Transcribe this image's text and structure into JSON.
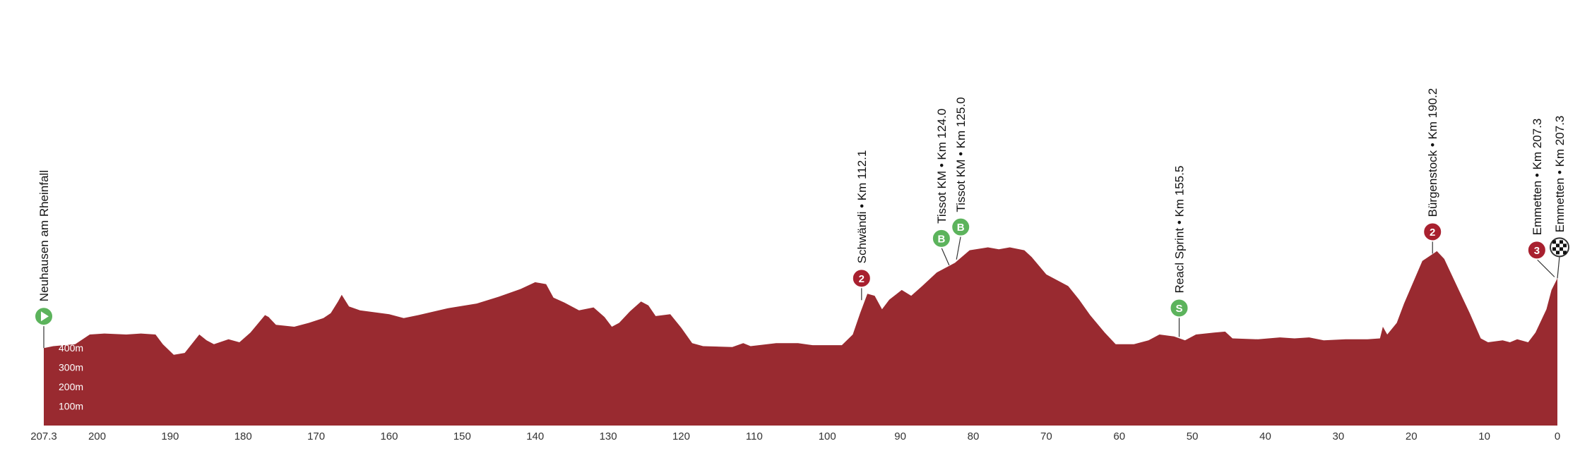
{
  "chart_data": {
    "type": "area",
    "xlabel": "",
    "ylabel": "",
    "x_direction": "reversed",
    "xlim": [
      207.3,
      0
    ],
    "ylim": [
      0,
      1500
    ],
    "x_ticks": [
      "207.3",
      "200",
      "190",
      "180",
      "170",
      "160",
      "150",
      "140",
      "130",
      "120",
      "110",
      "100",
      "90",
      "80",
      "70",
      "60",
      "50",
      "40",
      "30",
      "20",
      "10",
      "0"
    ],
    "y_ticks": [
      "100m",
      "200m",
      "300m",
      "400m",
      "500m",
      "600m",
      "700m",
      "800m",
      "900m",
      "1000m",
      "1100m",
      "1200m",
      "1300m",
      "1400m",
      "1500m"
    ],
    "colors": {
      "profile": "#992a30",
      "climb_badge": "#a8202f",
      "sprint_badge": "#5cb35c",
      "start_badge": "#5cb35c"
    },
    "series": [
      {
        "points": [
          [
            207.3,
            400
          ],
          [
            206,
            410
          ],
          [
            203,
            420
          ],
          [
            201,
            470
          ],
          [
            199,
            475
          ],
          [
            196,
            470
          ],
          [
            194,
            475
          ],
          [
            192,
            470
          ],
          [
            191,
            420
          ],
          [
            189.5,
            365
          ],
          [
            188,
            375
          ],
          [
            186,
            470
          ],
          [
            185,
            440
          ],
          [
            184,
            420
          ],
          [
            182,
            445
          ],
          [
            180.5,
            430
          ],
          [
            179,
            480
          ],
          [
            177,
            570
          ],
          [
            176.5,
            560
          ],
          [
            175.5,
            520
          ],
          [
            173,
            510
          ],
          [
            171,
            530
          ],
          [
            169,
            555
          ],
          [
            168,
            580
          ],
          [
            167,
            640
          ],
          [
            166.5,
            675
          ],
          [
            165.5,
            615
          ],
          [
            164,
            595
          ],
          [
            160,
            575
          ],
          [
            158,
            555
          ],
          [
            156,
            570
          ],
          [
            152,
            605
          ],
          [
            148,
            630
          ],
          [
            145,
            665
          ],
          [
            142,
            705
          ],
          [
            140,
            740
          ],
          [
            138.5,
            730
          ],
          [
            137.5,
            660
          ],
          [
            136,
            635
          ],
          [
            134,
            595
          ],
          [
            132,
            610
          ],
          [
            130.5,
            560
          ],
          [
            129.5,
            510
          ],
          [
            128.5,
            530
          ],
          [
            127,
            590
          ],
          [
            125.5,
            640
          ],
          [
            124.5,
            620
          ],
          [
            123.5,
            565
          ],
          [
            121.5,
            575
          ],
          [
            120,
            505
          ],
          [
            118.5,
            425
          ],
          [
            117,
            410
          ],
          [
            113,
            405
          ],
          [
            111.5,
            425
          ],
          [
            110.5,
            410
          ],
          [
            107,
            425
          ],
          [
            104,
            425
          ],
          [
            102,
            415
          ],
          [
            98,
            415
          ],
          [
            96.5,
            470
          ],
          [
            95.5,
            580
          ],
          [
            94.5,
            680
          ],
          [
            93.5,
            670
          ],
          [
            92.5,
            600
          ],
          [
            91.5,
            650
          ],
          [
            89.8,
            700
          ],
          [
            88.5,
            670
          ],
          [
            87,
            720
          ],
          [
            85,
            790
          ],
          [
            82.5,
            840
          ],
          [
            80.5,
            905
          ],
          [
            78,
            920
          ],
          [
            76.5,
            910
          ],
          [
            75,
            920
          ],
          [
            73,
            905
          ],
          [
            72,
            870
          ],
          [
            70,
            780
          ],
          [
            67,
            720
          ],
          [
            65.5,
            650
          ],
          [
            64,
            570
          ],
          [
            62,
            480
          ],
          [
            60.5,
            420
          ],
          [
            58,
            420
          ],
          [
            56,
            440
          ],
          [
            54.5,
            470
          ],
          [
            52.5,
            460
          ],
          [
            51,
            440
          ],
          [
            49.5,
            470
          ],
          [
            47,
            480
          ],
          [
            45.5,
            485
          ],
          [
            44.5,
            450
          ],
          [
            41,
            445
          ],
          [
            38,
            455
          ],
          [
            36,
            450
          ],
          [
            34,
            455
          ],
          [
            32,
            440
          ],
          [
            29,
            445
          ],
          [
            26,
            445
          ],
          [
            24.3,
            450
          ],
          [
            23.9,
            510
          ],
          [
            23.3,
            470
          ],
          [
            22,
            530
          ],
          [
            21,
            630
          ],
          [
            18.5,
            850
          ],
          [
            16.5,
            900
          ],
          [
            15.5,
            860
          ],
          [
            13.5,
            700
          ],
          [
            12,
            580
          ],
          [
            10.5,
            450
          ],
          [
            9.5,
            430
          ],
          [
            7.5,
            440
          ],
          [
            6.5,
            430
          ],
          [
            5.5,
            445
          ],
          [
            4,
            430
          ],
          [
            3,
            480
          ],
          [
            1.5,
            600
          ],
          [
            0.8,
            700
          ],
          [
            0,
            760
          ]
        ]
      }
    ],
    "markers": [
      {
        "km": 207.3,
        "elev": 400,
        "kind": "start",
        "symbol": "",
        "label": "Neuhausen am Rheinfall"
      },
      {
        "km": 95.3,
        "elev": 640,
        "kind": "climb",
        "symbol": "2",
        "label": "Schwändi • Km 112.1"
      },
      {
        "km": 83.3,
        "elev": 820,
        "kind": "sprint",
        "symbol": "B",
        "label": "Tissot KM • Km 124.0"
      },
      {
        "km": 82.3,
        "elev": 850,
        "kind": "sprint",
        "symbol": "B",
        "label": "Tissot KM • Km 125.0"
      },
      {
        "km": 51.8,
        "elev": 450,
        "kind": "sprint",
        "symbol": "S",
        "label": "Reacl Sprint • Km 155.5"
      },
      {
        "km": 17.1,
        "elev": 880,
        "kind": "climb",
        "symbol": "2",
        "label": "Bürgenstock • Km 190.2"
      },
      {
        "km": 0.4,
        "elev": 760,
        "kind": "climb",
        "symbol": "3",
        "label": "Emmetten • Km 207.3"
      },
      {
        "km": 0,
        "elev": 760,
        "kind": "finish",
        "symbol": "",
        "label": "Emmetten • Km 207.3"
      }
    ]
  }
}
